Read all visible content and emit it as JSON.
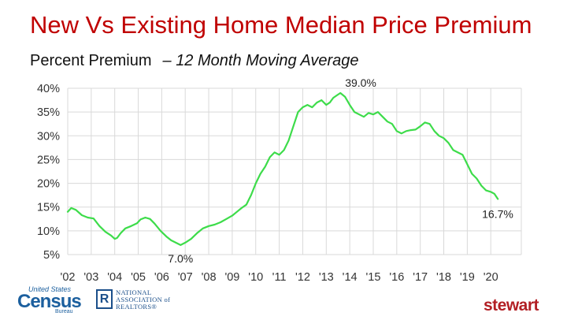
{
  "title": "New Vs Existing Home Median Price Premium",
  "subtitle": {
    "main": "Percent Premium",
    "dash": "–",
    "detail": "12 Month Moving Average"
  },
  "colors": {
    "title": "#c00000",
    "line": "#3ddc4a",
    "grid": "#d9d9d9",
    "stewart": "#b21f24",
    "census": "#1b5f9e"
  },
  "logos": {
    "census": {
      "top": "United States",
      "word": "Census",
      "bottom": "Bureau"
    },
    "nar": {
      "mark": "R",
      "lines": [
        "NATIONAL",
        "ASSOCIATION of",
        "REALTORS®"
      ]
    },
    "stewart": "stewart"
  },
  "chart_data": {
    "type": "line",
    "title": "New Vs Existing Home Median Price Premium",
    "subtitle": "Percent Premium – 12 Month Moving Average",
    "xlabel": "",
    "ylabel": "",
    "grid": true,
    "xlim": [
      2002,
      2021.3
    ],
    "ylim": [
      5,
      40
    ],
    "x_ticks": [
      "'02",
      "'03",
      "'04",
      "'05",
      "'06",
      "'07",
      "'08",
      "'09",
      "'10",
      "'11",
      "'12",
      "'13",
      "'14",
      "'15",
      "'16",
      "'17",
      "'18",
      "'19",
      "'20"
    ],
    "x_tick_values": [
      2002,
      2003,
      2004,
      2005,
      2006,
      2007,
      2008,
      2009,
      2010,
      2011,
      2012,
      2013,
      2014,
      2015,
      2016,
      2017,
      2018,
      2019,
      2020
    ],
    "y_ticks": [
      "5%",
      "10%",
      "15%",
      "20%",
      "25%",
      "30%",
      "35%",
      "40%"
    ],
    "y_tick_values": [
      5,
      10,
      15,
      20,
      25,
      30,
      35,
      40
    ],
    "series": [
      {
        "x": [
          2002.0,
          2002.15,
          2002.35,
          2002.6,
          2002.85,
          2003.1,
          2003.35,
          2003.6,
          2003.85,
          2004.0,
          2004.1,
          2004.25,
          2004.45,
          2004.7,
          2004.95,
          2005.1,
          2005.3,
          2005.5,
          2005.7,
          2005.95,
          2006.2,
          2006.4,
          2006.6,
          2006.8,
          2007.0,
          2007.25,
          2007.5,
          2007.75,
          2008.0,
          2008.25,
          2008.5,
          2008.75,
          2009.0,
          2009.2,
          2009.4,
          2009.6,
          2009.8,
          2010.0,
          2010.2,
          2010.4,
          2010.6,
          2010.8,
          2011.0,
          2011.2,
          2011.4,
          2011.6,
          2011.8,
          2012.0,
          2012.2,
          2012.4,
          2012.6,
          2012.8,
          2013.0,
          2013.15,
          2013.3,
          2013.45,
          2013.6,
          2013.8,
          2014.0,
          2014.2,
          2014.4,
          2014.6,
          2014.8,
          2015.0,
          2015.2,
          2015.4,
          2015.6,
          2015.8,
          2016.0,
          2016.2,
          2016.4,
          2016.6,
          2016.8,
          2017.0,
          2017.2,
          2017.4,
          2017.6,
          2017.8,
          2018.0,
          2018.2,
          2018.4,
          2018.6,
          2018.8,
          2019.0,
          2019.2,
          2019.4,
          2019.6,
          2019.8,
          2020.0,
          2020.15,
          2020.3
        ],
        "y": [
          14.0,
          14.8,
          14.4,
          13.3,
          12.8,
          12.6,
          11.0,
          9.8,
          9.0,
          8.3,
          8.5,
          9.5,
          10.5,
          11.0,
          11.6,
          12.4,
          12.8,
          12.5,
          11.5,
          10.0,
          8.8,
          8.0,
          7.5,
          7.0,
          7.5,
          8.3,
          9.5,
          10.5,
          11.0,
          11.3,
          11.8,
          12.5,
          13.2,
          14.0,
          14.8,
          15.5,
          17.5,
          20.0,
          22.0,
          23.5,
          25.5,
          26.5,
          26.0,
          27.0,
          29.0,
          32.0,
          35.0,
          36.0,
          36.5,
          36.0,
          37.0,
          37.5,
          36.5,
          37.0,
          38.0,
          38.5,
          39.0,
          38.2,
          36.5,
          35.0,
          34.5,
          34.0,
          34.8,
          34.5,
          35.0,
          34.0,
          33.0,
          32.5,
          31.0,
          30.5,
          31.0,
          31.2,
          31.3,
          32.0,
          32.8,
          32.5,
          31.0,
          30.0,
          29.5,
          28.5,
          27.0,
          26.5,
          26.0,
          24.0,
          22.0,
          21.0,
          19.5,
          18.5,
          18.2,
          17.8,
          16.7
        ]
      }
    ],
    "annotations": [
      {
        "text": "39.0%",
        "x": 2013.6,
        "y": 39.0
      },
      {
        "text": "7.0%",
        "x": 2006.8,
        "y": 7.0
      },
      {
        "text": "16.7%",
        "x": 2020.3,
        "y": 16.7
      }
    ]
  }
}
